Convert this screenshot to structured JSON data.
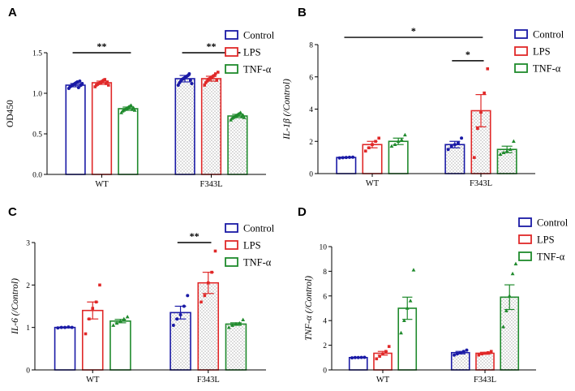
{
  "chart_data": [
    {
      "type": "bar",
      "panel": "A",
      "ylabel": "OD450",
      "ylabel_italic": false,
      "ylim": [
        0,
        1.5
      ],
      "yticks": [
        0,
        0.5,
        1.0,
        1.5
      ],
      "ytick_labels": [
        "0.0",
        "0.5",
        "1.0",
        "1.5"
      ],
      "categories": [
        "WT",
        "F343L"
      ],
      "series": [
        {
          "name": "Control",
          "values": [
            1.1,
            1.18
          ],
          "errors": [
            0.02,
            0.04
          ],
          "points": [
            [
              1.06,
              1.08,
              1.09,
              1.1,
              1.11,
              1.12,
              1.13,
              1.14,
              1.07,
              1.15,
              1.1,
              1.12
            ],
            [
              1.1,
              1.13,
              1.15,
              1.17,
              1.18,
              1.19,
              1.2,
              1.21,
              1.22,
              1.24,
              1.16,
              1.12
            ]
          ]
        },
        {
          "name": "LPS",
          "values": [
            1.13,
            1.18
          ],
          "errors": [
            0.02,
            0.03
          ],
          "points": [
            [
              1.08,
              1.1,
              1.11,
              1.12,
              1.13,
              1.14,
              1.15,
              1.16,
              1.17,
              1.12,
              1.14,
              1.1
            ],
            [
              1.1,
              1.13,
              1.15,
              1.17,
              1.18,
              1.19,
              1.2,
              1.21,
              1.22,
              1.24,
              1.16,
              1.26
            ]
          ]
        },
        {
          "name": "TNF-α",
          "values": [
            0.81,
            0.72
          ],
          "errors": [
            0.02,
            0.02
          ],
          "points": [
            [
              0.76,
              0.78,
              0.79,
              0.8,
              0.81,
              0.82,
              0.83,
              0.84,
              0.85,
              0.8,
              0.82,
              0.79
            ],
            [
              0.67,
              0.69,
              0.7,
              0.71,
              0.72,
              0.73,
              0.74,
              0.75,
              0.76,
              0.71,
              0.73,
              0.7
            ]
          ]
        }
      ],
      "significance": [
        {
          "label": "**",
          "group": 0,
          "from": 0,
          "to": 2,
          "y": 1.5
        },
        {
          "label": "**",
          "group": 1,
          "from": 0,
          "to": 2,
          "y": 1.5
        }
      ]
    },
    {
      "type": "bar",
      "panel": "B",
      "ylabel": "IL-1β (/Control)",
      "ylabel_italic": true,
      "ylim": [
        0,
        8
      ],
      "yticks": [
        0,
        2,
        4,
        6,
        8
      ],
      "ytick_labels": [
        "0",
        "2",
        "4",
        "6",
        "8"
      ],
      "categories": [
        "WT",
        "F343L"
      ],
      "series": [
        {
          "name": "Control",
          "values": [
            1.0,
            1.8
          ],
          "errors": [
            0.02,
            0.2
          ],
          "points": [
            [
              0.97,
              0.99,
              1.0,
              1.01,
              1.02
            ],
            [
              1.5,
              1.7,
              1.8,
              1.9,
              2.2
            ]
          ]
        },
        {
          "name": "LPS",
          "values": [
            1.8,
            3.9
          ],
          "errors": [
            0.2,
            1.0
          ],
          "points": [
            [
              1.4,
              1.6,
              1.8,
              2.0,
              2.2
            ],
            [
              1.0,
              2.8,
              3.8,
              5.0,
              6.5
            ]
          ]
        },
        {
          "name": "TNF-α",
          "values": [
            2.0,
            1.5
          ],
          "errors": [
            0.2,
            0.2
          ],
          "points": [
            [
              1.7,
              1.8,
              2.0,
              2.1,
              2.4
            ],
            [
              1.2,
              1.3,
              1.4,
              1.5,
              2.0
            ]
          ]
        }
      ],
      "significance": [
        {
          "label": "*",
          "type": "cross",
          "y": 8.45
        },
        {
          "label": "*",
          "group": 1,
          "from": 0,
          "to": 1,
          "y": 7.0
        }
      ]
    },
    {
      "type": "bar",
      "panel": "C",
      "ylabel": "IL-6 (/Control)",
      "ylabel_italic": true,
      "ylim": [
        0,
        3
      ],
      "yticks": [
        0,
        1,
        2,
        3
      ],
      "ytick_labels": [
        "0",
        "1",
        "2",
        "3"
      ],
      "categories": [
        "WT",
        "F343L"
      ],
      "series": [
        {
          "name": "Control",
          "values": [
            1.0,
            1.35
          ],
          "errors": [
            0.01,
            0.15
          ],
          "points": [
            [
              0.99,
              1.0,
              1.0,
              1.01,
              1.0
            ],
            [
              1.05,
              1.2,
              1.3,
              1.5,
              1.75
            ]
          ]
        },
        {
          "name": "LPS",
          "values": [
            1.4,
            2.05
          ],
          "errors": [
            0.2,
            0.25
          ],
          "points": [
            [
              0.85,
              1.2,
              1.45,
              1.6,
              2.0
            ],
            [
              1.6,
              1.75,
              2.05,
              2.3,
              2.8
            ]
          ]
        },
        {
          "name": "TNF-α",
          "values": [
            1.15,
            1.08
          ],
          "errors": [
            0.04,
            0.03
          ],
          "points": [
            [
              1.05,
              1.1,
              1.15,
              1.2,
              1.25
            ],
            [
              1.0,
              1.05,
              1.08,
              1.1,
              1.18
            ]
          ]
        }
      ],
      "significance": [
        {
          "label": "**",
          "group": 1,
          "from": 0,
          "to": 1,
          "y": 3.0
        }
      ]
    },
    {
      "type": "bar",
      "panel": "D",
      "ylabel": "TNF-α (/Control)",
      "ylabel_italic": true,
      "ylim": [
        0,
        10
      ],
      "yticks": [
        0,
        2,
        4,
        6,
        8,
        10
      ],
      "ytick_labels": [
        "0",
        "2",
        "4",
        "6",
        "8",
        "10"
      ],
      "categories": [
        "WT",
        "F343L"
      ],
      "series": [
        {
          "name": "Control",
          "values": [
            1.0,
            1.4
          ],
          "errors": [
            0.01,
            0.1
          ],
          "points": [
            [
              0.98,
              1.0,
              1.0,
              1.01,
              1.02
            ],
            [
              1.2,
              1.3,
              1.4,
              1.5,
              1.6
            ]
          ]
        },
        {
          "name": "LPS",
          "values": [
            1.35,
            1.35
          ],
          "errors": [
            0.15,
            0.08
          ],
          "points": [
            [
              0.9,
              1.1,
              1.3,
              1.5,
              1.9
            ],
            [
              1.2,
              1.3,
              1.35,
              1.4,
              1.5
            ]
          ]
        },
        {
          "name": "TNF-α",
          "values": [
            5.0,
            5.9
          ],
          "errors": [
            0.9,
            1.0
          ],
          "points": [
            [
              3.0,
              4.0,
              5.0,
              5.6,
              8.1
            ],
            [
              3.5,
              4.8,
              6.0,
              7.8,
              8.6
            ]
          ]
        }
      ],
      "significance": []
    }
  ],
  "legend": [
    "Control",
    "LPS",
    "TNF-α"
  ],
  "colors": {
    "Control": "#1a1aa6",
    "LPS": "#e02828",
    "TNF-α": "#1f8a2c",
    "axis": "#000000"
  }
}
